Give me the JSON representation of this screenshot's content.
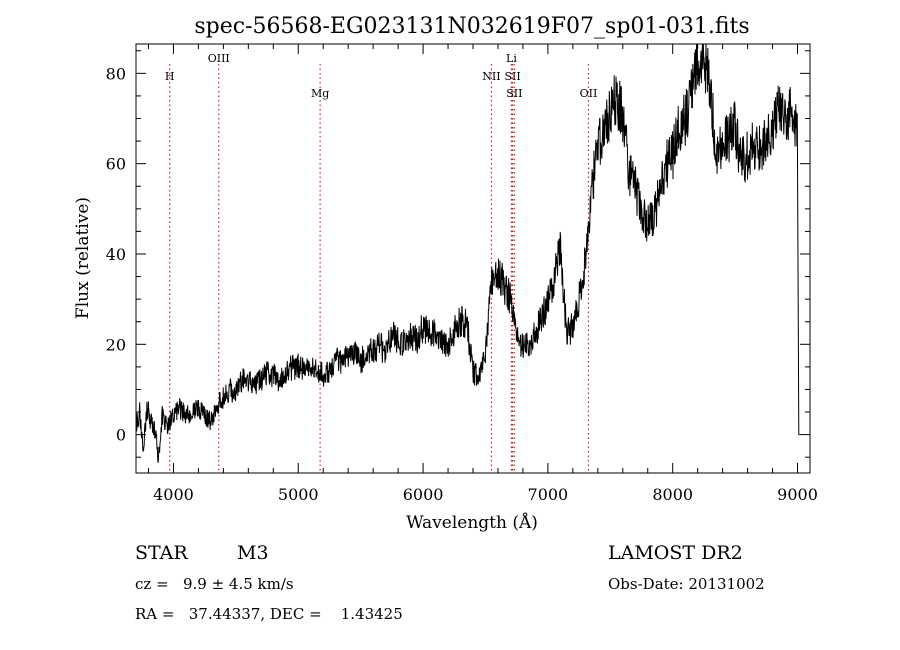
{
  "chart_data": {
    "type": "line",
    "title": "spec-56568-EG023131N032619F07_sp01-031.fits",
    "xlabel": "Wavelength (Å)",
    "ylabel": "Flux (relative)",
    "xlim": [
      3700,
      9100
    ],
    "ylim": [
      -8.5,
      86.5
    ],
    "xticks": [
      4000,
      5000,
      6000,
      7000,
      8000,
      9000
    ],
    "yticks": [
      0,
      20,
      40,
      60,
      80
    ],
    "x_minor_step": 200,
    "y_minor_step": 5,
    "grid": false,
    "line_color": "#000000",
    "marker_color": "#cc2222",
    "series": [
      {
        "x": [
          3700,
          3730,
          3760,
          3790,
          3820,
          3850,
          3880,
          3910,
          3940,
          3970,
          4000,
          4050,
          4100,
          4150,
          4200,
          4250,
          4300,
          4350,
          4400,
          4450,
          4500,
          4550,
          4600,
          4650,
          4700,
          4750,
          4800,
          4850,
          4900,
          4950,
          5000,
          5050,
          5100,
          5150,
          5200,
          5250,
          5300,
          5350,
          5400,
          5450,
          5500,
          5550,
          5600,
          5650,
          5700,
          5750,
          5800,
          5850,
          5900,
          5950,
          6000,
          6050,
          6100,
          6150,
          6200,
          6250,
          6300,
          6350,
          6400,
          6450,
          6500,
          6550,
          6600,
          6650,
          6700,
          6750,
          6800,
          6850,
          6900,
          6950,
          7000,
          7050,
          7100,
          7150,
          7200,
          7250,
          7300,
          7350,
          7400,
          7450,
          7500,
          7550,
          7600,
          7650,
          7700,
          7750,
          7800,
          7850,
          7900,
          7950,
          8000,
          8050,
          8100,
          8150,
          8200,
          8250,
          8300,
          8350,
          8400,
          8450,
          8500,
          8550,
          8600,
          8650,
          8700,
          8750,
          8800,
          8850,
          8900,
          8950,
          9000,
          9010
        ],
        "y": [
          2,
          5,
          -3,
          6,
          3,
          1,
          -5,
          4,
          2,
          3,
          5,
          6,
          4,
          5,
          6,
          4,
          3,
          7,
          8,
          10,
          9,
          12,
          12,
          11,
          12,
          14,
          13,
          12,
          13,
          15,
          15,
          14,
          15,
          14,
          13,
          14,
          17,
          16,
          17,
          18,
          16,
          19,
          18,
          20,
          18,
          22,
          21,
          20,
          22,
          21,
          24,
          23,
          22,
          21,
          20,
          23,
          25,
          25,
          14,
          13,
          18,
          34,
          36,
          33,
          30,
          22,
          19,
          20,
          23,
          25,
          30,
          34,
          42,
          22,
          24,
          30,
          38,
          55,
          63,
          68,
          72,
          75,
          70,
          58,
          55,
          50,
          46,
          48,
          55,
          60,
          62,
          68,
          70,
          75,
          82,
          84,
          78,
          62,
          64,
          66,
          68,
          60,
          62,
          64,
          63,
          66,
          68,
          72,
          70,
          72,
          66,
          0
        ],
        "noise": 3.5,
        "seed": 56568
      }
    ],
    "line_markers": [
      {
        "label": "H",
        "x": 3970,
        "level": 3
      },
      {
        "label": "OIII",
        "x": 4363,
        "level": 1
      },
      {
        "label": "Mg",
        "x": 5175,
        "level": 2
      },
      {
        "label": "NII",
        "x": 6548,
        "level": 3
      },
      {
        "label": "Li",
        "x": 6708,
        "level": 1
      },
      {
        "label": "SII",
        "x": 6717,
        "level": 3
      },
      {
        "label": "SII",
        "x": 6731,
        "level": 2
      },
      {
        "label": "OII",
        "x": 7325,
        "level": 2
      }
    ]
  },
  "info": {
    "object_class": "STAR",
    "subclass": "M3",
    "survey": "LAMOST DR2",
    "cz": "cz =   9.9 ± 4.5 km/s",
    "obs_date": "Obs-Date: 20131002",
    "coords": "RA =   37.44337, DEC =    1.43425"
  }
}
